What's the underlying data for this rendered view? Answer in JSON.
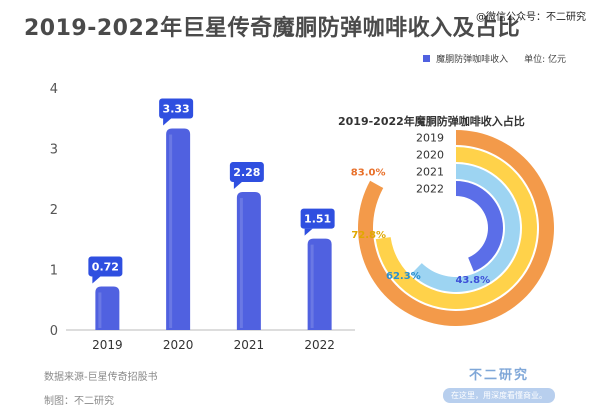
{
  "header": {
    "title": "2019-2022年巨星传奇魔胴防弹咖啡收入及占比",
    "wechat": "@微信公众号：不二研究"
  },
  "legend": {
    "series_name": "魔胴防弹咖啡收入",
    "unit": "单位: 亿元"
  },
  "chart_data": [
    {
      "type": "bar",
      "categories": [
        "2019",
        "2020",
        "2021",
        "2022"
      ],
      "series": [
        {
          "name": "魔胴防弹咖啡收入",
          "values": [
            0.72,
            3.33,
            2.28,
            1.51
          ]
        }
      ],
      "ylim": [
        0,
        4
      ],
      "yticks": [
        0,
        1,
        2,
        3,
        4
      ],
      "unit": "单位: 亿元",
      "bar_color": "#5061e0",
      "label_color": "#2f4fe0",
      "legend_position": "top-right"
    },
    {
      "type": "pie",
      "variant": "radial-bar",
      "title": "2019-2022年魔胴防弹咖啡收入占比",
      "categories": [
        "2019",
        "2020",
        "2021",
        "2022"
      ],
      "values": [
        83.0,
        72.8,
        62.3,
        43.8
      ],
      "labels": [
        "83.0%",
        "72.8%",
        "62.3%",
        "43.8%"
      ],
      "colors": [
        "#f39a4a",
        "#ffd24a",
        "#9dd4f2",
        "#5b6ee8"
      ],
      "label_colors": [
        "#e8702a",
        "#e0a800",
        "#2a8fd0",
        "#3d4fd8"
      ]
    }
  ],
  "footer": {
    "source": "数据来源-巨星传奇招股书",
    "made_by": "制图：不二研究"
  },
  "brand": {
    "name": "不二研究",
    "slogan": "在这里，用深度看懂商业。"
  }
}
